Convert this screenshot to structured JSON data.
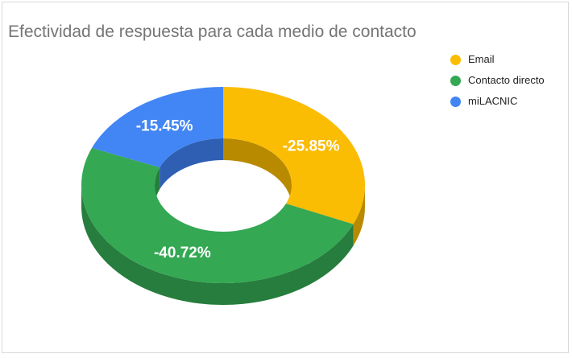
{
  "chart_data": {
    "type": "pie",
    "title": "Efectividad de respuesta para cada medio de contacto",
    "labels": [
      "Email",
      "Contacto directo",
      "miLACNIC"
    ],
    "values": [
      -25.85,
      -40.72,
      -15.45
    ],
    "data_labels": [
      "-25.85%",
      "-40.72%",
      "-15.45%"
    ],
    "colors": [
      "#fbbc04",
      "#34a853",
      "#4285f4"
    ],
    "side_colors": [
      "#b88a00",
      "#267d3d",
      "#2f5fb3"
    ],
    "style": "donut-3d",
    "legend_position": "right"
  }
}
